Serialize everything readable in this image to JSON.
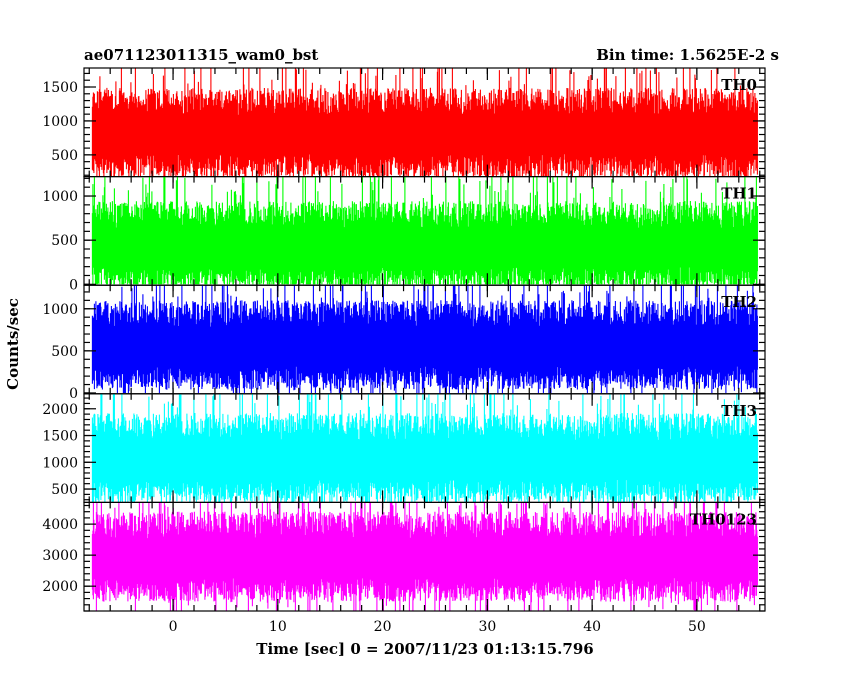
{
  "chart_data": {
    "type": "line",
    "title_left": "ae071123011315_wam0_bst",
    "title_right": "Bin time: 1.5625E-2 s",
    "xlabel": "Time [sec] 0 = 2007/11/23 01:13:15.796",
    "ylabel": "Counts/sec",
    "xlim": [
      -8.5,
      56.5
    ],
    "x_ticks": [
      0,
      10,
      20,
      30,
      40,
      50
    ],
    "data_x_range": [
      -7.7,
      55.8
    ],
    "bin_time_s": 0.015625,
    "panels": [
      {
        "name": "TH0",
        "color": "#ff0000",
        "ylim": [
          180,
          1780
        ],
        "y_ticks": [
          500,
          1000,
          1500
        ],
        "mean": 800,
        "min": 180,
        "max": 1780
      },
      {
        "name": "TH1",
        "color": "#00ff00",
        "ylim": [
          -10,
          1220
        ],
        "y_ticks": [
          0,
          500,
          1000
        ],
        "mean": 420,
        "min": 0,
        "max": 1220
      },
      {
        "name": "TH2",
        "color": "#0000ff",
        "ylim": [
          -10,
          1280
        ],
        "y_ticks": [
          0,
          500,
          1000
        ],
        "mean": 550,
        "min": 0,
        "max": 1280
      },
      {
        "name": "TH3",
        "color": "#00ffff",
        "ylim": [
          250,
          2280
        ],
        "y_ticks": [
          500,
          1000,
          1500,
          2000
        ],
        "mean": 1050,
        "min": 250,
        "max": 2280
      },
      {
        "name": "TH0123",
        "color": "#ff00ff",
        "ylim": [
          1200,
          4700
        ],
        "y_ticks": [
          2000,
          3000,
          4000
        ],
        "mean": 2900,
        "min": 1200,
        "max": 4700
      }
    ]
  }
}
